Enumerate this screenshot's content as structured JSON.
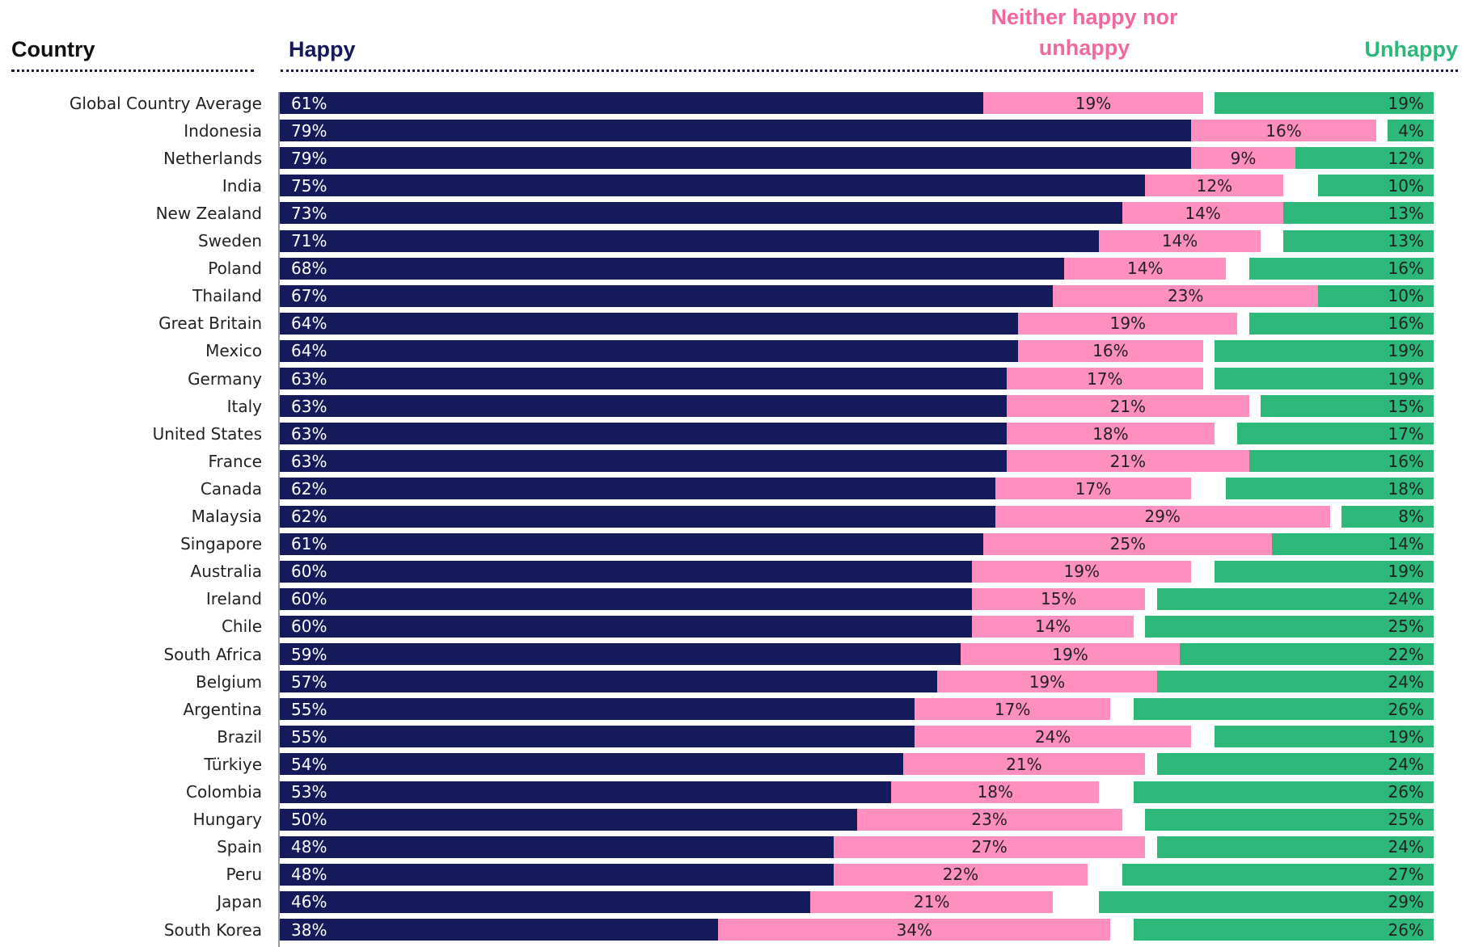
{
  "chart_data": {
    "type": "bar",
    "orientation": "horizontal",
    "category_label": "Country",
    "xlim": [
      0,
      100
    ],
    "categories": [
      "Global Country Average",
      "Indonesia",
      "Netherlands",
      "India",
      "New Zealand",
      "Sweden",
      "Poland",
      "Thailand",
      "Great Britain",
      "Mexico",
      "Germany",
      "Italy",
      "United States",
      "France",
      "Canada",
      "Malaysia",
      "Singapore",
      "Australia",
      "Ireland",
      "Chile",
      "South Africa",
      "Belgium",
      "Argentina",
      "Brazil",
      "Türkiye",
      "Colombia",
      "Hungary",
      "Spain",
      "Peru",
      "Japan",
      "South Korea"
    ],
    "series": [
      {
        "name": "Happy",
        "color": "#141a5a",
        "anchor": "left",
        "values": [
          61,
          79,
          79,
          75,
          73,
          71,
          68,
          67,
          64,
          64,
          63,
          63,
          63,
          63,
          62,
          62,
          61,
          60,
          60,
          60,
          59,
          57,
          55,
          55,
          54,
          53,
          50,
          48,
          48,
          46,
          38
        ],
        "value_labels": [
          "61%",
          "79%",
          "79%",
          "75%",
          "73%",
          "71%",
          "68%",
          "67%",
          "64%",
          "64%",
          "63%",
          "63%",
          "63%",
          "63%",
          "62%",
          "62%",
          "61%",
          "60%",
          "60%",
          "60%",
          "59%",
          "57%",
          "55%",
          "55%",
          "54%",
          "53%",
          "50%",
          "48%",
          "48%",
          "46%",
          "38%"
        ]
      },
      {
        "name": "Neither happy nor unhappy",
        "color": "#ff8fbf",
        "anchor": "after",
        "values": [
          19,
          16,
          9,
          12,
          14,
          14,
          14,
          23,
          19,
          16,
          17,
          21,
          18,
          21,
          17,
          29,
          25,
          19,
          15,
          14,
          19,
          19,
          17,
          24,
          21,
          18,
          23,
          27,
          22,
          21,
          34
        ],
        "value_labels": [
          "19%",
          "16%",
          "9%",
          "12%",
          "14%",
          "14%",
          "14%",
          "23%",
          "19%",
          "16%",
          "17%",
          "21%",
          "18%",
          "21%",
          "17%",
          "29%",
          "25%",
          "19%",
          "15%",
          "14%",
          "19%",
          "19%",
          "17%",
          "24%",
          "21%",
          "18%",
          "23%",
          "27%",
          "22%",
          "21%",
          "34%"
        ]
      },
      {
        "name": "Unhappy",
        "color": "#2db87a",
        "anchor": "right",
        "values": [
          19,
          4,
          12,
          10,
          13,
          13,
          16,
          10,
          16,
          19,
          19,
          15,
          17,
          16,
          18,
          8,
          14,
          19,
          24,
          25,
          22,
          24,
          26,
          19,
          24,
          26,
          25,
          24,
          27,
          29,
          26
        ],
        "value_labels": [
          "19%",
          "4%",
          "12%",
          "10%",
          "13%",
          "13%",
          "16%",
          "10%",
          "16%",
          "19%",
          "19%",
          "15%",
          "17%",
          "16%",
          "18%",
          "8%",
          "14%",
          "19%",
          "24%",
          "25%",
          "22%",
          "24%",
          "26%",
          "19%",
          "24%",
          "26%",
          "25%",
          "24%",
          "27%",
          "29%",
          "26%"
        ]
      }
    ]
  }
}
